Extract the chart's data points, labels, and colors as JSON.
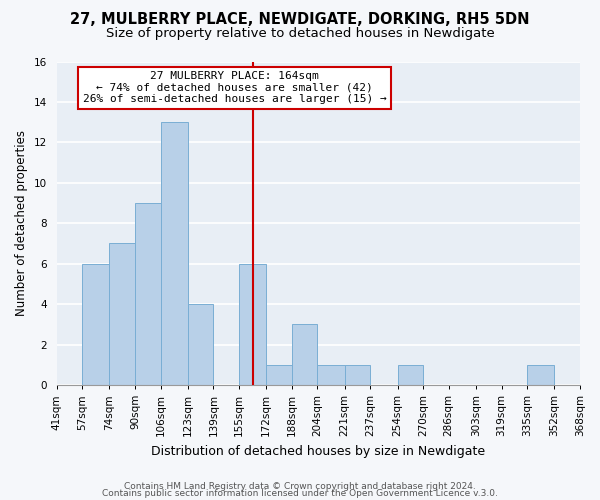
{
  "title1": "27, MULBERRY PLACE, NEWDIGATE, DORKING, RH5 5DN",
  "title2": "Size of property relative to detached houses in Newdigate",
  "xlabel": "Distribution of detached houses by size in Newdigate",
  "ylabel": "Number of detached properties",
  "bin_edges": [
    41,
    57,
    74,
    90,
    106,
    123,
    139,
    155,
    172,
    188,
    204,
    221,
    237,
    254,
    270,
    286,
    303,
    319,
    335,
    352,
    368
  ],
  "counts": [
    0,
    6,
    7,
    9,
    13,
    4,
    0,
    6,
    1,
    3,
    1,
    1,
    0,
    1,
    0,
    0,
    0,
    0,
    1,
    0
  ],
  "bar_color": "#b8d0e8",
  "bar_edgecolor": "#7aaed4",
  "vline_x": 164,
  "vline_color": "#cc0000",
  "ylim": [
    0,
    16
  ],
  "yticks": [
    0,
    2,
    4,
    6,
    8,
    10,
    12,
    14,
    16
  ],
  "annotation_title": "27 MULBERRY PLACE: 164sqm",
  "annotation_line1": "← 74% of detached houses are smaller (42)",
  "annotation_line2": "26% of semi-detached houses are larger (15) →",
  "annotation_box_facecolor": "#ffffff",
  "annotation_box_edgecolor": "#cc0000",
  "footer1": "Contains HM Land Registry data © Crown copyright and database right 2024.",
  "footer2": "Contains public sector information licensed under the Open Government Licence v.3.0.",
  "plot_bg_color": "#e8eef5",
  "fig_bg_color": "#f5f7fa",
  "grid_color": "#ffffff",
  "title1_fontsize": 10.5,
  "title2_fontsize": 9.5,
  "xlabel_fontsize": 9,
  "ylabel_fontsize": 8.5,
  "tick_fontsize": 7.5,
  "footer_fontsize": 6.5
}
